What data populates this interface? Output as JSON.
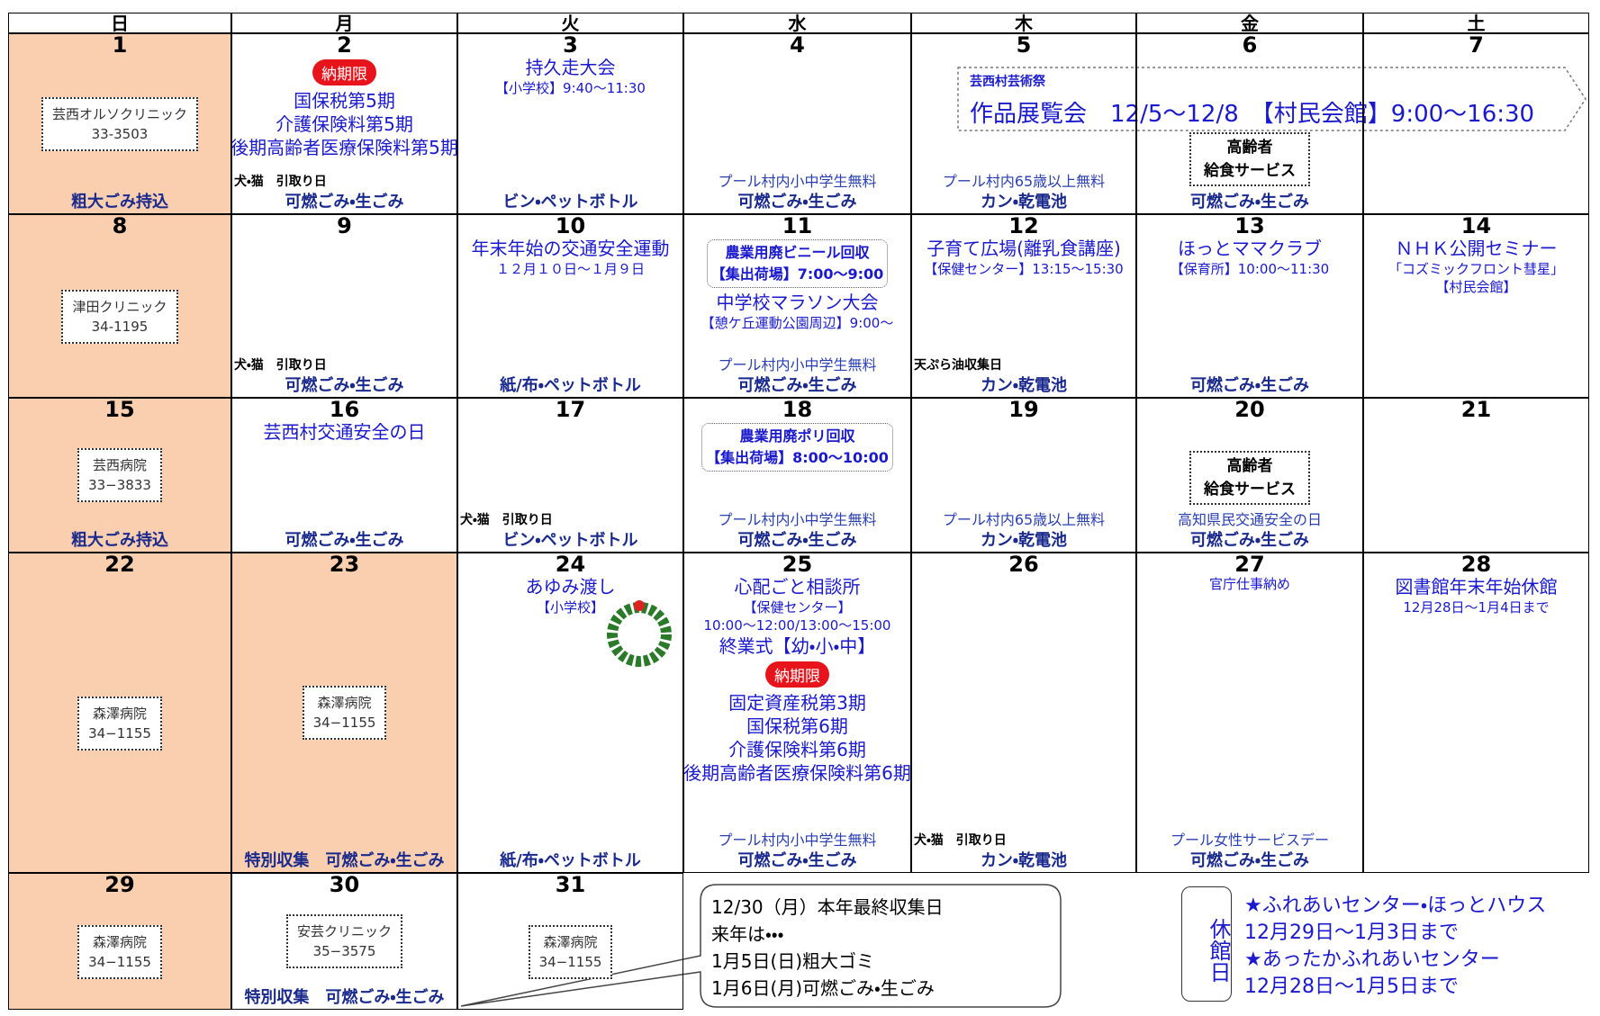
{
  "days": [
    "日",
    "月",
    "火",
    "水",
    "木",
    "金",
    "土"
  ],
  "weeks": [
    [
      {
        "date": "1",
        "holiday": true,
        "clinic": [
          "芸西オルソクリニック",
          "33-3503"
        ],
        "garbage": "粗大ごみ持込"
      },
      {
        "date": "2",
        "badge": "納期限",
        "events": [
          "国保税第5期",
          "介護保険料第5期",
          "後期高齢者医療保険料第5期"
        ],
        "notes_left": [
          "犬・猫　引取り日"
        ],
        "garbage": "可燃ごみ・生ごみ"
      },
      {
        "date": "3",
        "events": [
          "持久走大会"
        ],
        "events_small": [
          "【小学校】9:40〜11:30"
        ],
        "garbage": "ビン・ペットボトル"
      },
      {
        "date": "4",
        "notes": [
          "プール村内小中学生無料"
        ],
        "garbage": "可燃ごみ・生ごみ"
      },
      {
        "date": "5",
        "notes": [
          "プール村内65歳以上無料"
        ],
        "garbage": "カン・乾電池"
      },
      {
        "date": "6",
        "box": [
          "高齢者",
          "給食サービス"
        ],
        "garbage": "可燃ごみ・生ごみ"
      },
      {
        "date": "7"
      }
    ],
    [
      {
        "date": "8",
        "holiday": true,
        "clinic": [
          "津田クリニック",
          "34-1195"
        ]
      },
      {
        "date": "9",
        "notes_left": [
          "犬・猫　引取り日"
        ],
        "garbage": "可燃ごみ・生ごみ"
      },
      {
        "date": "10",
        "events": [
          "年末年始の交通安全運動"
        ],
        "events_small": [
          "１２月１０日〜１月９日"
        ],
        "garbage": "紙/布・ペットボトル"
      },
      {
        "date": "11",
        "top_box": [
          "農業用廃ビニール回収",
          "【集出荷場】7:00〜9:00"
        ],
        "events": [
          "中学校マラソン大会"
        ],
        "events_small": [
          "【憩ケ丘運動公園周辺】9:00〜"
        ],
        "notes": [
          "プール村内小中学生無料"
        ],
        "garbage": "可燃ごみ・生ごみ"
      },
      {
        "date": "12",
        "events": [
          "子育て広場(離乳食講座)"
        ],
        "events_small": [
          "【保健センター】13:15〜15:30"
        ],
        "notes_left": [
          "天ぷら油収集日"
        ],
        "garbage": "カン・乾電池"
      },
      {
        "date": "13",
        "events": [
          "ほっとママクラブ"
        ],
        "events_small": [
          "【保育所】10:00〜11:30"
        ],
        "garbage": "可燃ごみ・生ごみ"
      },
      {
        "date": "14",
        "events": [
          "ＮＨＫ公開セミナー"
        ],
        "events_small": [
          "「コズミックフロント彗星」",
          "【村民会館】"
        ]
      }
    ],
    [
      {
        "date": "15",
        "holiday": true,
        "clinic": [
          "芸西病院",
          "33−3833"
        ],
        "garbage": "粗大ごみ持込"
      },
      {
        "date": "16",
        "events": [
          "芸西村交通安全の日"
        ],
        "garbage": "可燃ごみ・生ごみ"
      },
      {
        "date": "17",
        "notes_left": [
          "犬・猫　引取り日"
        ],
        "garbage": "ビン・ペットボトル"
      },
      {
        "date": "18",
        "top_box": [
          "農業用廃ポリ回収",
          "【集出荷場】8:00〜10:00"
        ],
        "notes": [
          "プール村内小中学生無料"
        ],
        "garbage": "可燃ごみ・生ごみ"
      },
      {
        "date": "19",
        "notes": [
          "プール村内65歳以上無料"
        ],
        "garbage": "カン・乾電池"
      },
      {
        "date": "20",
        "box": [
          "高齢者",
          "給食サービス"
        ],
        "notes": [
          "高知県民交通安全の日"
        ],
        "garbage": "可燃ごみ・生ごみ"
      },
      {
        "date": "21"
      }
    ],
    [
      {
        "date": "22",
        "holiday": true,
        "clinic": [
          "森澤病院",
          "34−1155"
        ]
      },
      {
        "date": "23",
        "holiday": true,
        "clinic": [
          "森澤病院",
          "34−1155"
        ],
        "garbage": "特別収集　可燃ごみ・生ごみ"
      },
      {
        "date": "24",
        "events": [
          "あゆみ渡し"
        ],
        "events_small": [
          "【小学校】"
        ],
        "garbage": "紙/布・ペットボトル"
      },
      {
        "date": "25",
        "events": [
          "心配ごと相談所"
        ],
        "events_small": [
          "【保健センター】",
          "10:00〜12:00/13:00〜15:00"
        ],
        "events_more": [
          "終業式【幼・小・中】"
        ],
        "badge": "納期限",
        "events_late": [
          "固定資産税第3期",
          "国保税第6期",
          "介護保険料第6期",
          "後期高齢者医療保険料第6期"
        ],
        "notes": [
          "プール村内小中学生無料"
        ],
        "garbage": "可燃ごみ・生ごみ"
      },
      {
        "date": "26",
        "notes_left": [
          "犬・猫　引取り日"
        ],
        "garbage": "カン・乾電池"
      },
      {
        "date": "27",
        "events_small": [
          "官庁仕事納め"
        ],
        "notes": [
          "プール女性サービスデー"
        ],
        "garbage": "可燃ごみ・生ごみ"
      },
      {
        "date": "28",
        "events": [
          "図書館年末年始休館"
        ],
        "events_small": [
          "12月28日〜1月4日まで"
        ]
      }
    ],
    [
      {
        "date": "29",
        "holiday": true,
        "clinic": [
          "森澤病院",
          "34−1155"
        ]
      },
      {
        "date": "30",
        "clinic": [
          "安芸クリニック",
          "35−3575"
        ],
        "garbage": "特別収集　可燃ごみ・生ごみ"
      },
      {
        "date": "31",
        "clinic": [
          "森澤病院",
          "34−1155"
        ]
      }
    ]
  ],
  "banner": {
    "subtitle": "芸西村芸術祭",
    "title": "作品展覧会　12/5〜12/8　【村民会館】9:00〜16:30"
  },
  "callout": [
    "12/30（月）本年最終収集日",
    "来年は・・・",
    "1月5日(日)粗大ゴミ",
    "1月6日(月)可燃ごみ・生ごみ"
  ],
  "closed": {
    "label": "休館日",
    "lines": [
      "★ふれあいセンター・ほっとハウス",
      "12月29日〜1月3日まで",
      "★あったかふれあいセンター",
      "12月28日〜1月5日まで"
    ]
  }
}
